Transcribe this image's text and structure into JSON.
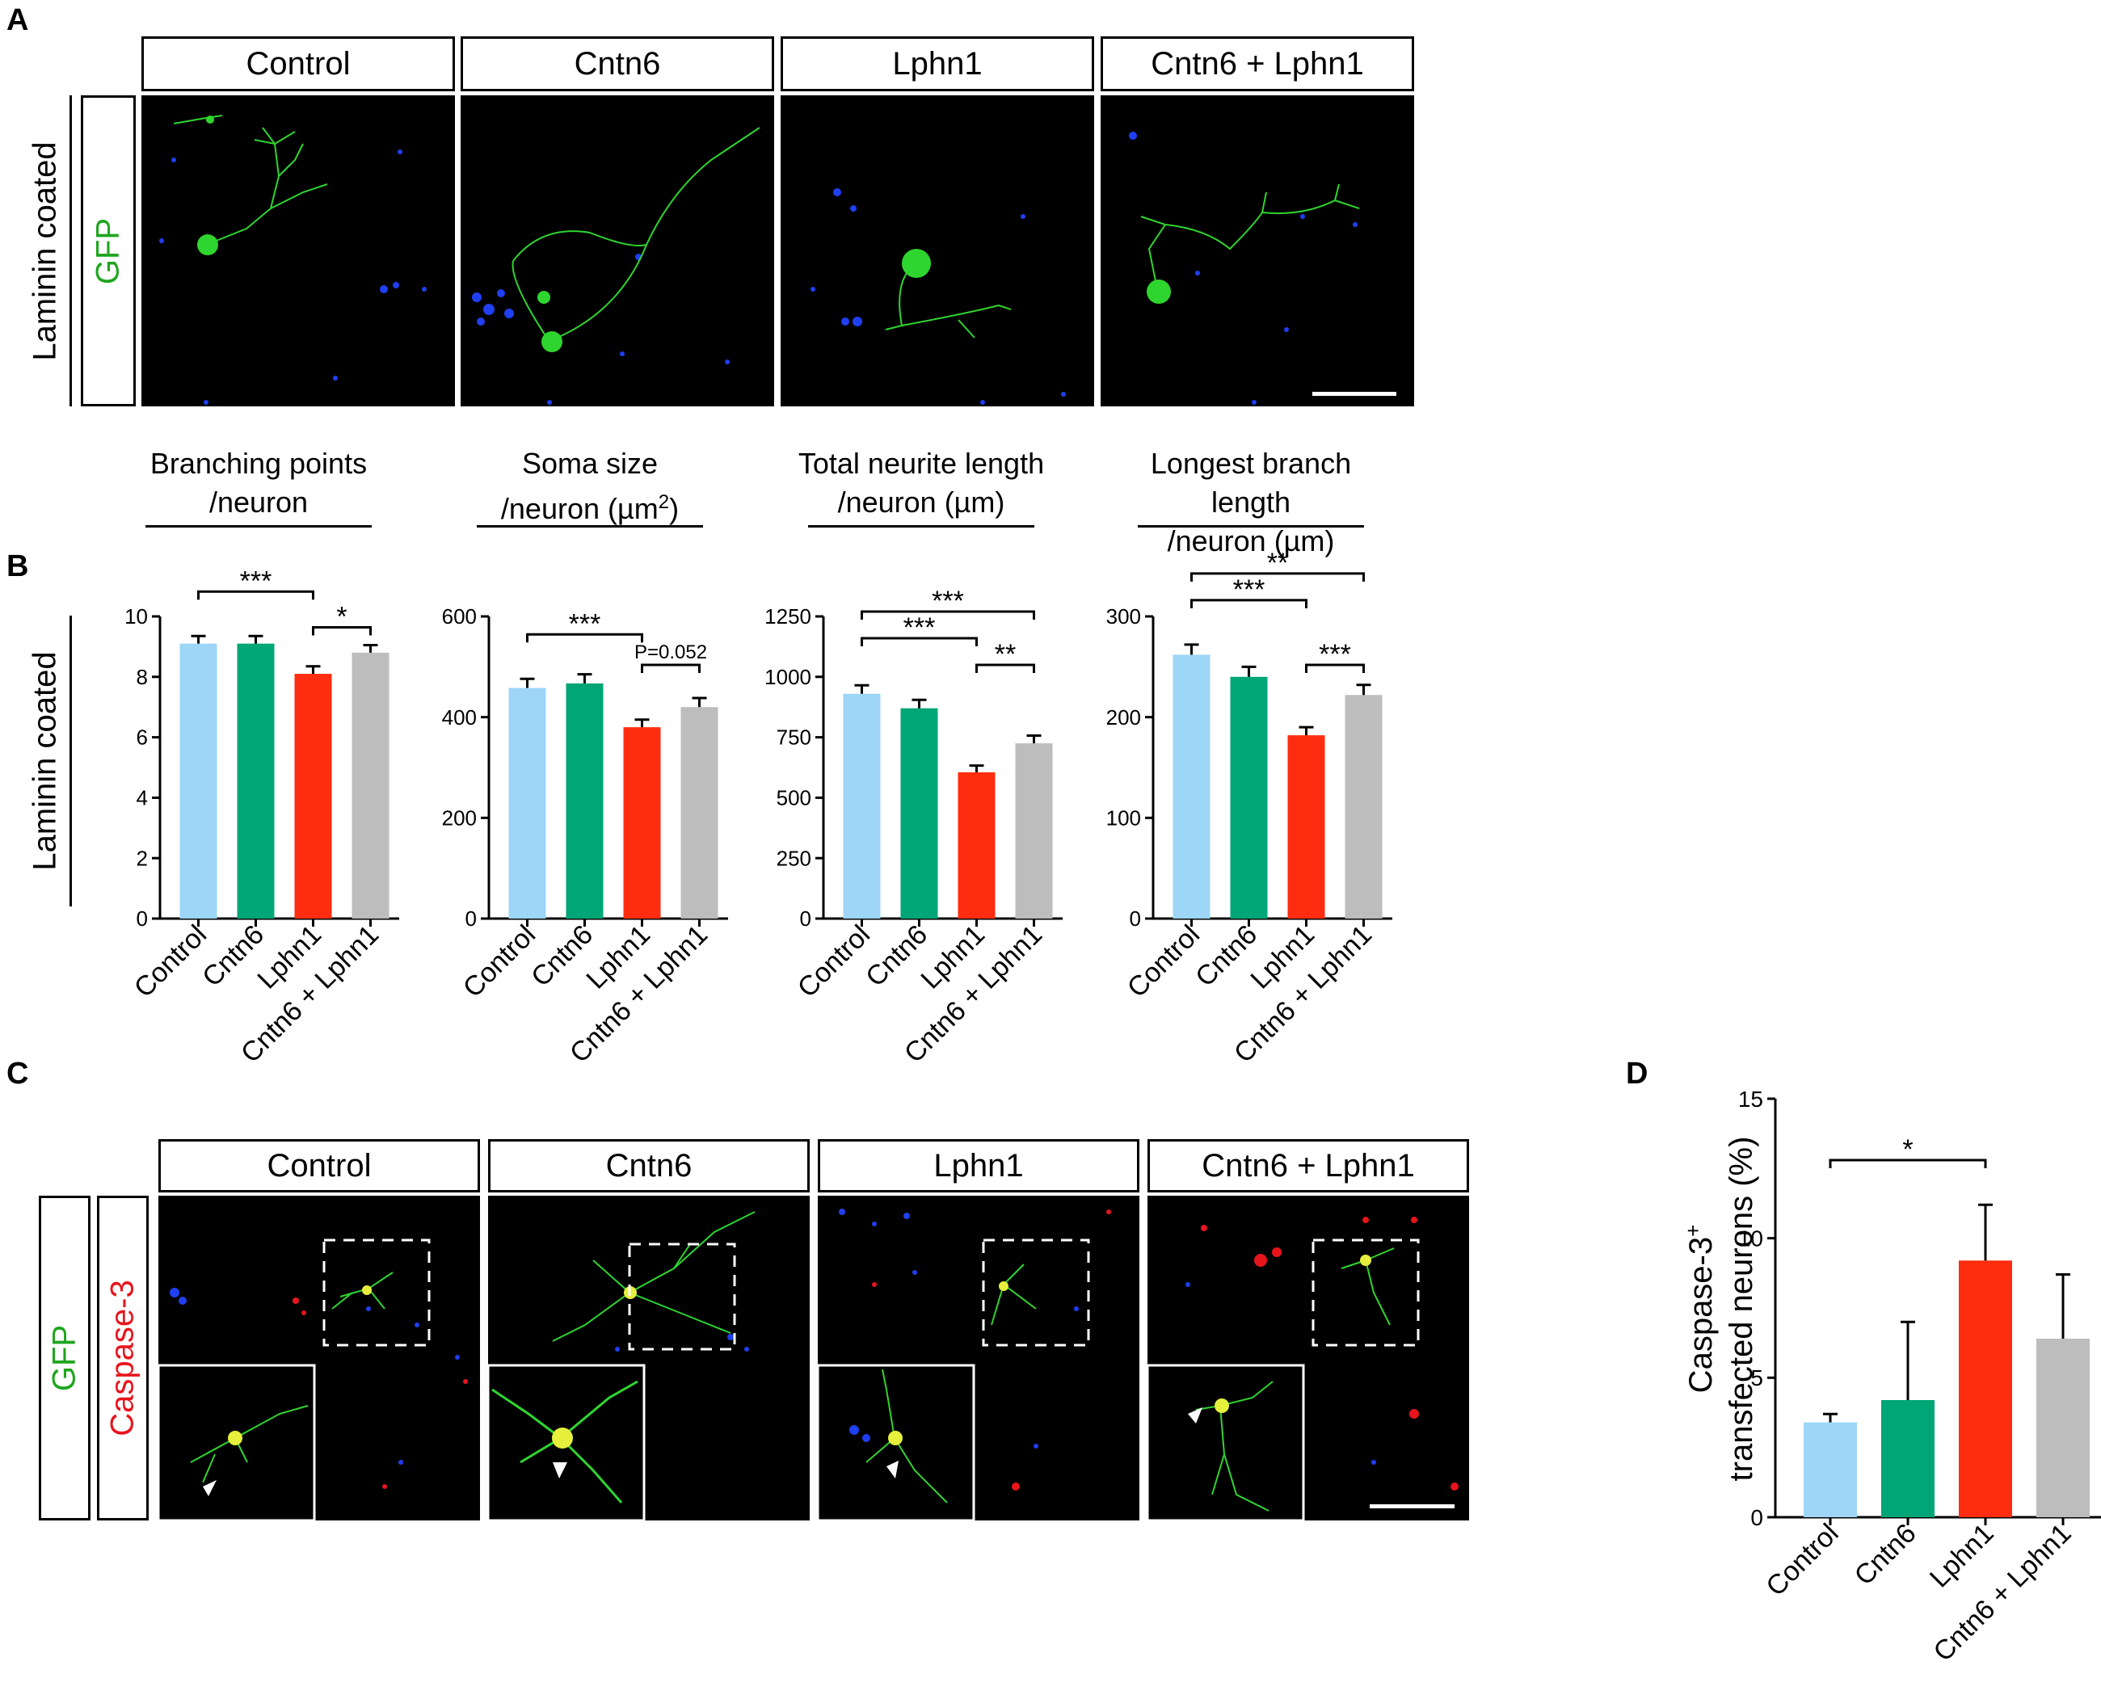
{
  "panels": {
    "A": "A",
    "B": "B",
    "C": "C",
    "D": "D"
  },
  "panel_a": {
    "conditions": [
      "Control",
      "Cntn6",
      "Lphn1",
      "Cntn6 + Lphn1"
    ],
    "row_label": "Laminin coated",
    "stain_label": "GFP"
  },
  "panel_b": {
    "row_label": "Laminin coated",
    "metric_titles": [
      {
        "line1": "Branching points",
        "line2": "/neuron"
      },
      {
        "line1": "Soma size",
        "line2": "/neuron (µm",
        "sup": "2",
        "line2_end": ")"
      },
      {
        "line1": "Total neurite length",
        "line2": "/neuron (µm)"
      },
      {
        "line1": "Longest branch length",
        "line2": "/neuron (µm)"
      }
    ]
  },
  "panel_c": {
    "conditions": [
      "Control",
      "Cntn6",
      "Lphn1",
      "Cntn6 + Lphn1"
    ],
    "stain_green": "GFP",
    "stain_red": "Caspase-3"
  },
  "colors": {
    "control": "#9dd6f6",
    "cntn6": "#00a676",
    "lphn1": "#ff2d0f",
    "combo": "#bdbdbd",
    "gfp_green": "#1ea51e",
    "caspase_red": "#e8141c"
  },
  "chart_data": [
    {
      "type": "bar",
      "categories": [
        "Control",
        "Cntn6",
        "Lphn1",
        "Cntn6 + Lphn1"
      ],
      "values": [
        9.1,
        9.1,
        8.1,
        8.8
      ],
      "errors": [
        0.25,
        0.25,
        0.25,
        0.25
      ],
      "ylim": [
        0,
        10
      ],
      "yticks": [
        0,
        2,
        4,
        6,
        8,
        10
      ],
      "significance": [
        {
          "from": 0,
          "to": 2,
          "label": "***",
          "level": 1
        },
        {
          "from": 2,
          "to": 3,
          "label": "*",
          "level": 0
        }
      ]
    },
    {
      "type": "bar",
      "categories": [
        "Control",
        "Cntn6",
        "Lphn1",
        "Cntn6 + Lphn1"
      ],
      "values": [
        458,
        467,
        380,
        420
      ],
      "errors": [
        18,
        18,
        15,
        18
      ],
      "ylim": [
        0,
        600
      ],
      "yticks": [
        0,
        200,
        400,
        600
      ],
      "significance": [
        {
          "from": 0,
          "to": 2,
          "label": "***",
          "level": 1
        },
        {
          "from": 2,
          "to": 3,
          "label": "P=0.052",
          "level": 0
        }
      ]
    },
    {
      "type": "bar",
      "categories": [
        "Control",
        "Cntn6",
        "Lphn1",
        "Cntn6 + Lphn1"
      ],
      "values": [
        930,
        870,
        605,
        725
      ],
      "errors": [
        35,
        35,
        28,
        32
      ],
      "ylim": [
        0,
        1250
      ],
      "yticks": [
        0,
        250,
        500,
        750,
        1000,
        1250
      ],
      "significance": [
        {
          "from": 0,
          "to": 3,
          "label": "***",
          "level": 2
        },
        {
          "from": 0,
          "to": 2,
          "label": "***",
          "level": 1
        },
        {
          "from": 2,
          "to": 3,
          "label": "**",
          "level": 0
        }
      ]
    },
    {
      "type": "bar",
      "categories": [
        "Control",
        "Cntn6",
        "Lphn1",
        "Cntn6 + Lphn1"
      ],
      "values": [
        262,
        240,
        182,
        222
      ],
      "errors": [
        10,
        10,
        8,
        10
      ],
      "ylim": [
        0,
        300
      ],
      "yticks": [
        0,
        100,
        200,
        300
      ],
      "significance": [
        {
          "from": 0,
          "to": 3,
          "label": "**",
          "level": 2
        },
        {
          "from": 0,
          "to": 2,
          "label": "***",
          "level": 1
        },
        {
          "from": 2,
          "to": 3,
          "label": "***",
          "level": 0
        }
      ]
    },
    {
      "type": "bar",
      "categories": [
        "Control",
        "Cntn6",
        "Lphn1",
        "Cntn6 + Lphn1"
      ],
      "values": [
        3.4,
        4.2,
        9.2,
        6.4
      ],
      "errors": [
        0.3,
        2.8,
        2.0,
        2.3
      ],
      "ylim": [
        0,
        15
      ],
      "yticks": [
        0,
        5,
        10,
        15
      ],
      "ylabel_line1": "Caspase-3",
      "ylabel_sup": "+",
      "ylabel_line2": "transfected neurons (%)",
      "significance": [
        {
          "from": 0,
          "to": 2,
          "label": "*",
          "level": 0
        }
      ]
    }
  ]
}
